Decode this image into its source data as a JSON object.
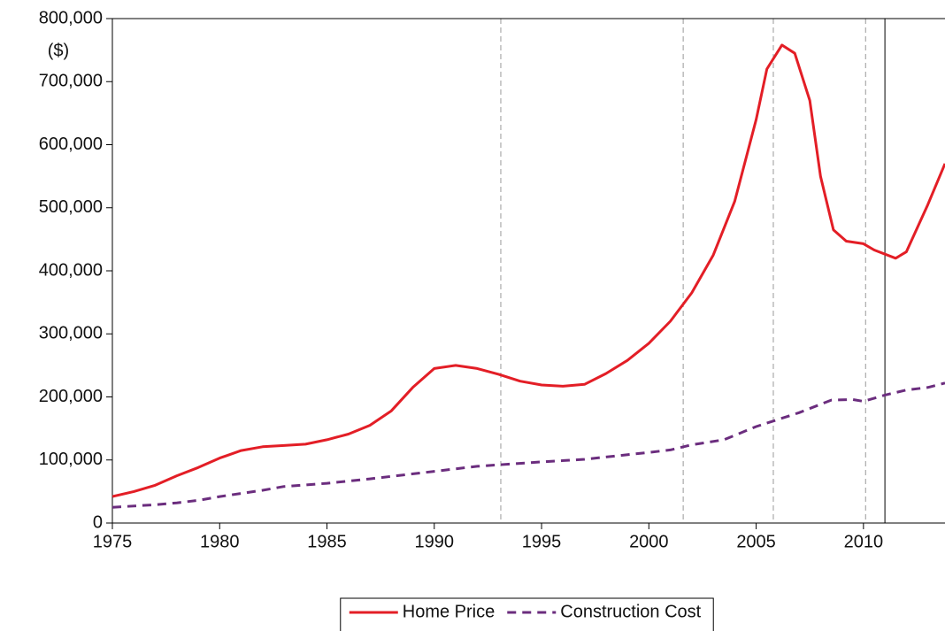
{
  "chart_data": {
    "type": "line",
    "y_label": "($)",
    "xlim": [
      1975,
      2013.8
    ],
    "xticks": [
      1975,
      1980,
      1985,
      1990,
      1995,
      2000,
      2005,
      2010
    ],
    "ylim": [
      0,
      800000
    ],
    "yticks": [
      0,
      {
        "value": 100000,
        "label": "100,000"
      },
      {
        "value": 200000,
        "label": "200,000"
      },
      {
        "value": 300000,
        "label": "300,000"
      },
      {
        "value": 400000,
        "label": "400,000"
      },
      {
        "value": 500000,
        "label": "500,000"
      },
      {
        "value": 600000,
        "label": "600,000"
      },
      {
        "value": 700000,
        "label": "700,000"
      },
      {
        "value": 800000,
        "label": "800,000"
      }
    ],
    "vlines": [
      {
        "x": 1993.1,
        "style": "dashed"
      },
      {
        "x": 2001.6,
        "style": "dashed"
      },
      {
        "x": 2005.8,
        "style": "dashed"
      },
      {
        "x": 2010.1,
        "style": "dashed"
      },
      {
        "x": 2011,
        "style": "solid"
      }
    ],
    "legend": "bottom",
    "series": [
      {
        "name": "Home Price",
        "color": "#e31e26",
        "dash": "solid",
        "x": [
          1975,
          1976,
          1977,
          1978,
          1979,
          1980,
          1981,
          1982,
          1983,
          1984,
          1985,
          1986,
          1987,
          1988,
          1989,
          1990,
          1991,
          1992,
          1993,
          1994,
          1995,
          1996,
          1997,
          1998,
          1999,
          2000,
          2001,
          2002,
          2003,
          2004,
          2005,
          2005.5,
          2006.2,
          2006.8,
          2007.5,
          2008,
          2008.6,
          2009.2,
          2010,
          2010.5,
          2011.5,
          2012,
          2013,
          2013.8
        ],
        "values": [
          42000,
          50000,
          60000,
          75000,
          88000,
          103000,
          115000,
          121000,
          123000,
          125000,
          132000,
          141000,
          155000,
          178000,
          215000,
          245000,
          250000,
          245000,
          236000,
          225000,
          219000,
          217000,
          220000,
          237000,
          258000,
          285000,
          320000,
          365000,
          425000,
          510000,
          640000,
          720000,
          758000,
          745000,
          670000,
          550000,
          465000,
          447000,
          443000,
          433000,
          420000,
          430000,
          505000,
          570000
        ]
      },
      {
        "name": "Construction Cost",
        "color": "#6b2d7e",
        "dash": "dashed",
        "x": [
          1975,
          1977,
          1978,
          1979,
          1980,
          1982,
          1983,
          1985,
          1987,
          1990,
          1992,
          1995,
          1997,
          2000,
          2001,
          2002,
          2003.5,
          2005,
          2007,
          2008.5,
          2009.5,
          2010,
          2011,
          2012,
          2013,
          2013.8
        ],
        "values": [
          25000,
          29000,
          32000,
          36000,
          42000,
          52000,
          58000,
          63000,
          70000,
          82000,
          90000,
          97000,
          101000,
          112000,
          116000,
          124000,
          132000,
          153000,
          175000,
          195000,
          196000,
          193000,
          203000,
          211000,
          215000,
          222000
        ]
      }
    ]
  }
}
